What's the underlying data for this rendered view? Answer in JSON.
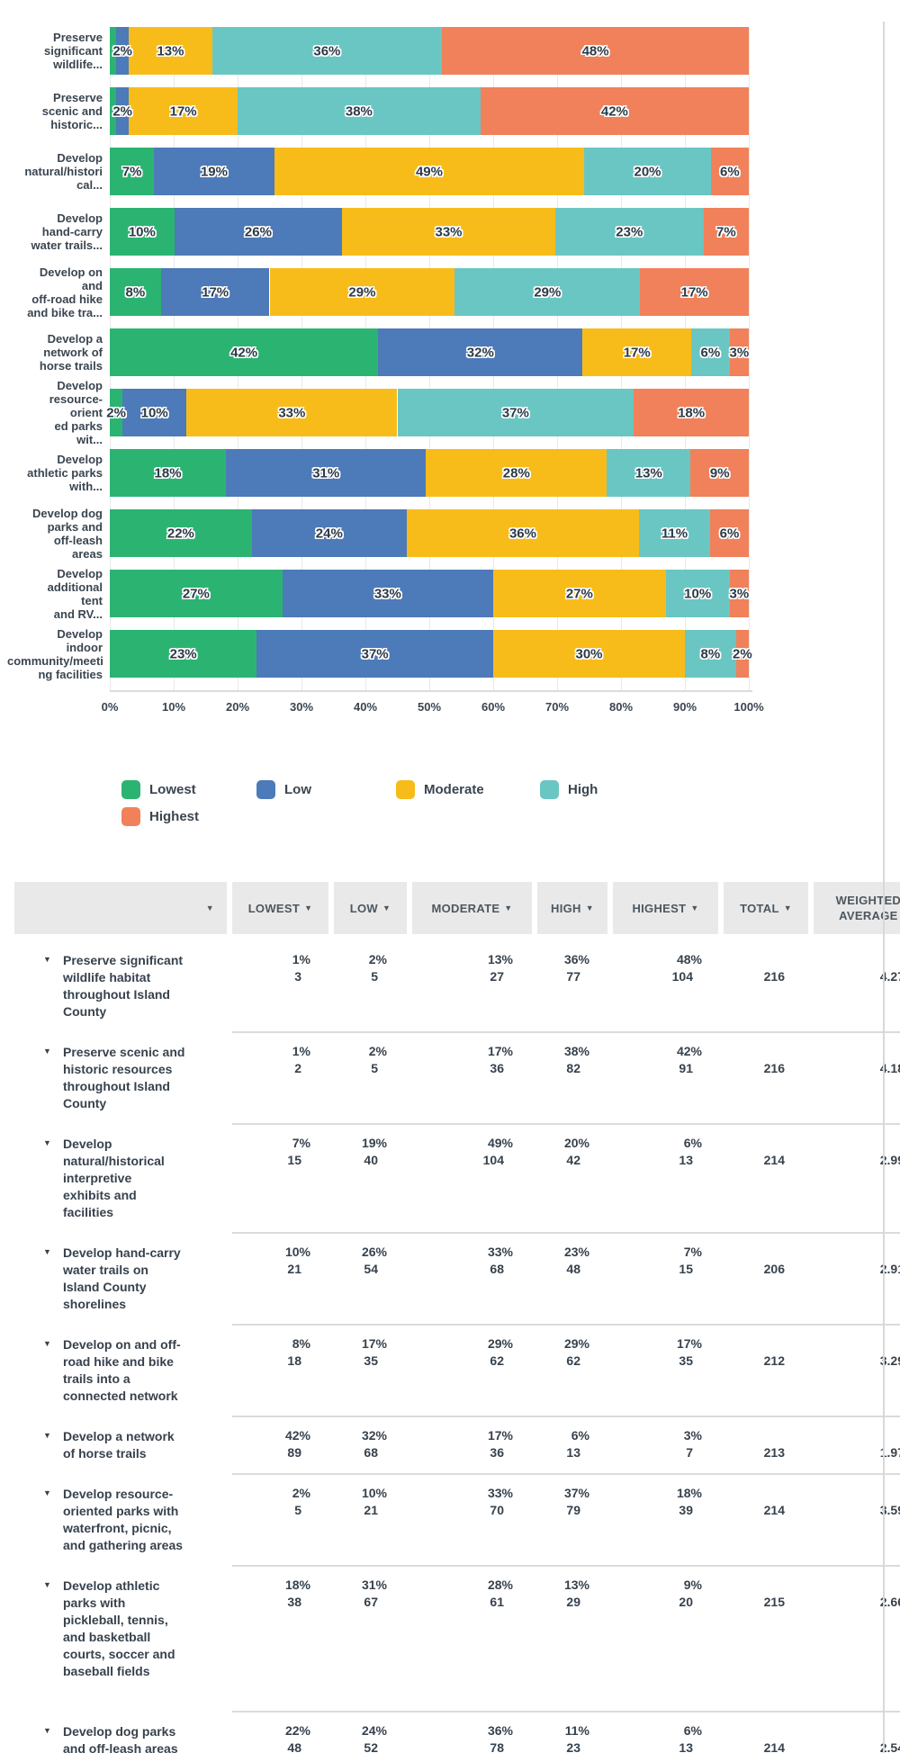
{
  "colors": {
    "lowest": "#2BB471",
    "low": "#4D7AB8",
    "moderate": "#F8BC1A",
    "high": "#6AC6C3",
    "highest": "#F0815A",
    "text": "#3A4550",
    "grid": "#E9E9E9",
    "header_bg": "#E9E9E9",
    "separator": "#DBDBDB"
  },
  "chart_data": {
    "type": "bar",
    "orientation": "horizontal",
    "stacked": true,
    "series_names": [
      "Lowest",
      "Low",
      "Moderate",
      "High",
      "Highest"
    ],
    "x_axis": {
      "range": [
        0,
        100
      ],
      "ticks": [
        "0%",
        "10%",
        "20%",
        "30%",
        "40%",
        "50%",
        "60%",
        "70%",
        "80%",
        "90%",
        "100%"
      ]
    },
    "legend": {
      "position": "bottom",
      "items": [
        {
          "label": "Lowest",
          "color": "#2BB471"
        },
        {
          "label": "Low",
          "color": "#4D7AB8"
        },
        {
          "label": "Moderate",
          "color": "#F8BC1A"
        },
        {
          "label": "High",
          "color": "#6AC6C3"
        },
        {
          "label": "Highest",
          "color": "#F0815A"
        }
      ]
    },
    "bars": [
      {
        "label_lines": [
          "Preserve",
          "significant",
          "wildlife..."
        ],
        "values": [
          1,
          2,
          13,
          36,
          48
        ],
        "segment_labels": [
          "",
          "2%",
          "13%",
          "36%",
          "48%"
        ]
      },
      {
        "label_lines": [
          "Preserve",
          "scenic and",
          "historic..."
        ],
        "values": [
          1,
          2,
          17,
          38,
          42
        ],
        "segment_labels": [
          "",
          "2%",
          "17%",
          "38%",
          "42%"
        ]
      },
      {
        "label_lines": [
          "Develop",
          "natural/histori",
          "cal..."
        ],
        "values": [
          7,
          19,
          49,
          20,
          6
        ],
        "segment_labels": [
          "7%",
          "19%",
          "49%",
          "20%",
          "6%"
        ]
      },
      {
        "label_lines": [
          "Develop",
          "hand-carry",
          "water trails..."
        ],
        "values": [
          10,
          26,
          33,
          23,
          7
        ],
        "segment_labels": [
          "10%",
          "26%",
          "33%",
          "23%",
          "7%"
        ]
      },
      {
        "label_lines": [
          "Develop on",
          "and",
          "off-road hike",
          "and bike tra..."
        ],
        "values": [
          8,
          17,
          29,
          29,
          17
        ],
        "segment_labels": [
          "8%",
          "17%",
          "29%",
          "29%",
          "17%"
        ]
      },
      {
        "label_lines": [
          "Develop a",
          "network of",
          "horse trails"
        ],
        "values": [
          42,
          32,
          17,
          6,
          3
        ],
        "segment_labels": [
          "42%",
          "32%",
          "17%",
          "6%",
          "3%"
        ]
      },
      {
        "label_lines": [
          "Develop",
          "resource-",
          "orient",
          "ed parks",
          "wit..."
        ],
        "values": [
          2,
          10,
          33,
          37,
          18
        ],
        "segment_labels": [
          "2%",
          "10%",
          "33%",
          "37%",
          "18%"
        ]
      },
      {
        "label_lines": [
          "Develop",
          "athletic parks",
          "with..."
        ],
        "values": [
          18,
          31,
          28,
          13,
          9
        ],
        "segment_labels": [
          "18%",
          "31%",
          "28%",
          "13%",
          "9%"
        ]
      },
      {
        "label_lines": [
          "Develop dog",
          "parks and",
          "off-leash",
          "areas"
        ],
        "values": [
          22,
          24,
          36,
          11,
          6
        ],
        "segment_labels": [
          "22%",
          "24%",
          "36%",
          "11%",
          "6%"
        ]
      },
      {
        "label_lines": [
          "Develop",
          "additional",
          "tent",
          "and RV..."
        ],
        "values": [
          27,
          33,
          27,
          10,
          3
        ],
        "segment_labels": [
          "27%",
          "33%",
          "27%",
          "10%",
          "3%"
        ]
      },
      {
        "label_lines": [
          "Develop",
          "indoor",
          "community/meeti",
          "ng facilities"
        ],
        "values": [
          23,
          37,
          30,
          8,
          2
        ],
        "segment_labels": [
          "23%",
          "37%",
          "30%",
          "8%",
          "2%"
        ]
      }
    ]
  },
  "table": {
    "headers": [
      "",
      "LOWEST",
      "LOW",
      "MODERATE",
      "HIGH",
      "HIGHEST",
      "TOTAL",
      "WEIGHTED AVERAGE"
    ],
    "rows": [
      {
        "label_lines": [
          "Preserve significant",
          "wildlife habitat",
          "throughout Island",
          "County"
        ],
        "pcts": [
          "1%",
          "2%",
          "13%",
          "36%",
          "48%"
        ],
        "counts": [
          "3",
          "5",
          "27",
          "77",
          "104"
        ],
        "total": "216",
        "weighted": "4.27"
      },
      {
        "label_lines": [
          "Preserve scenic and",
          "historic resources",
          "throughout Island",
          "County"
        ],
        "pcts": [
          "1%",
          "2%",
          "17%",
          "38%",
          "42%"
        ],
        "counts": [
          "2",
          "5",
          "36",
          "82",
          "91"
        ],
        "total": "216",
        "weighted": "4.18"
      },
      {
        "label_lines": [
          "Develop",
          "natural/historical",
          "interpretive",
          "exhibits and",
          "facilities"
        ],
        "pcts": [
          "7%",
          "19%",
          "49%",
          "20%",
          "6%"
        ],
        "counts": [
          "15",
          "40",
          "104",
          "42",
          "13"
        ],
        "total": "214",
        "weighted": "2.99"
      },
      {
        "label_lines": [
          "Develop hand-carry",
          "water trails on",
          "Island County",
          "shorelines"
        ],
        "pcts": [
          "10%",
          "26%",
          "33%",
          "23%",
          "7%"
        ],
        "counts": [
          "21",
          "54",
          "68",
          "48",
          "15"
        ],
        "total": "206",
        "weighted": "2.91"
      },
      {
        "label_lines": [
          "Develop on and off-",
          "road hike and bike",
          "trails into a",
          "connected network"
        ],
        "pcts": [
          "8%",
          "17%",
          "29%",
          "29%",
          "17%"
        ],
        "counts": [
          "18",
          "35",
          "62",
          "62",
          "35"
        ],
        "total": "212",
        "weighted": "3.29"
      },
      {
        "label_lines": [
          "Develop a network",
          "of horse trails"
        ],
        "pcts": [
          "42%",
          "32%",
          "17%",
          "6%",
          "3%"
        ],
        "counts": [
          "89",
          "68",
          "36",
          "13",
          "7"
        ],
        "total": "213",
        "weighted": "1.97"
      },
      {
        "label_lines": [
          "Develop resource-",
          "oriented parks with",
          "waterfront, picnic,",
          "and gathering areas"
        ],
        "pcts": [
          "2%",
          "10%",
          "33%",
          "37%",
          "18%"
        ],
        "counts": [
          "5",
          "21",
          "70",
          "79",
          "39"
        ],
        "total": "214",
        "weighted": "3.59"
      },
      {
        "label_lines": [
          "Develop athletic",
          "parks with",
          "pickleball, tennis,",
          "and basketball",
          "courts, soccer and",
          "baseball fields"
        ],
        "pcts": [
          "18%",
          "31%",
          "28%",
          "13%",
          "9%"
        ],
        "counts": [
          "38",
          "67",
          "61",
          "29",
          "20"
        ],
        "total": "215",
        "weighted": "2.66"
      },
      {
        "label_lines": [
          "Develop dog parks",
          "and off-leash areas"
        ],
        "pcts": [
          "22%",
          "24%",
          "36%",
          "11%",
          "6%"
        ],
        "counts": [
          "48",
          "52",
          "78",
          "23",
          "13"
        ],
        "total": "214",
        "weighted": "2.54"
      }
    ]
  }
}
